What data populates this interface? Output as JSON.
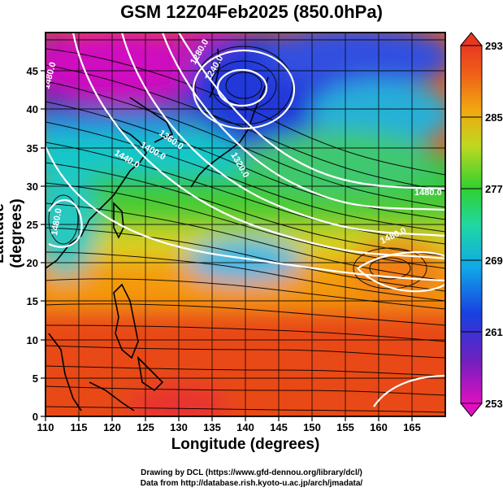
{
  "title": "GSM 12Z04Feb2025 (850.0hPa)",
  "x_axis_label": "Longitude (degrees)",
  "y_axis_label": "Latitude  (degrees)",
  "credit_line_1": "Drawing by DCL (https://www.gfd-dennou.org/library/dcl/)",
  "credit_line_2": "Data from http://database.rish.kyoto-u.ac.jp/arch/jmadata/",
  "x_ticks": [
    "110",
    "115",
    "120",
    "125",
    "130",
    "135",
    "140",
    "145",
    "150",
    "155",
    "160",
    "165"
  ],
  "y_ticks": [
    "0",
    "5",
    "10",
    "15",
    "20",
    "25",
    "30",
    "35",
    "40",
    "45"
  ],
  "colorbar_ticks": [
    "293",
    "285",
    "277",
    "269",
    "261",
    "253"
  ],
  "contour_labels": [
    "1280.0",
    "1240.0",
    "1320.0",
    "1360.0",
    "1400.0",
    "1440.0",
    "1480.0",
    "1480.0",
    "1480.0",
    "1480.0"
  ],
  "map_extent": {
    "lon": [
      110,
      170
    ],
    "lat": [
      0,
      50
    ]
  },
  "colorbar_range": [
    253,
    293
  ],
  "colors": {
    "warm": "#e8401c",
    "orange": "#f07e10",
    "yellow": "#e8c418",
    "green": "#30c830",
    "cyan": "#10c8c8",
    "blue": "#1848e0",
    "navy": "#2010a0",
    "magenta": "#e010c0",
    "contour": "#ffffff",
    "streamline": "#000000"
  }
}
